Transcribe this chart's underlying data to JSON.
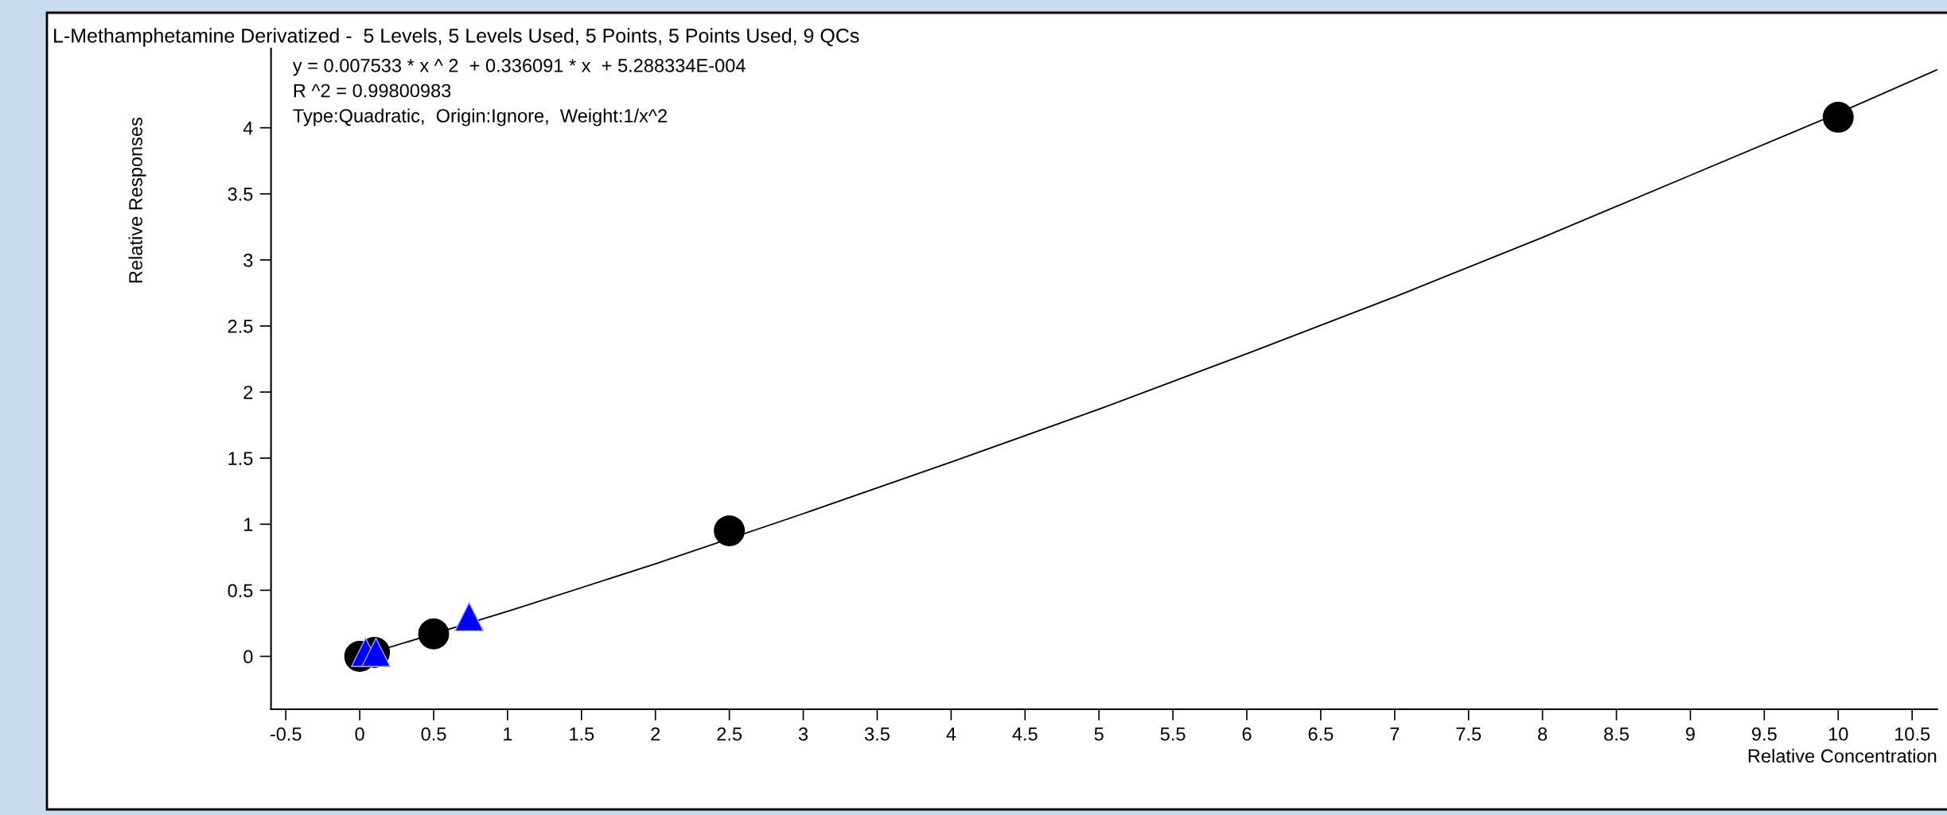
{
  "chart_data": {
    "type": "scatter",
    "title": "L-Methamphetamine Derivatized -  5 Levels, 5 Levels Used, 5 Points, 5 Points Used, 9 QCs",
    "xlabel": "Relative Concentration",
    "ylabel": "Relative Responses",
    "annotations": [
      "y = 0.007533 * x ^ 2  + 0.336091 * x  + 5.288334E-004",
      "R ^2 = 0.99800983",
      "Type:Quadratic,  Origin:Ignore,  Weight:1/x^2"
    ],
    "xlim": [
      -0.6,
      10.67
    ],
    "ylim": [
      -0.4,
      4.6
    ],
    "xticks": [
      -0.5,
      0,
      0.5,
      1,
      1.5,
      2,
      2.5,
      3,
      3.5,
      4,
      4.5,
      5,
      5.5,
      6,
      6.5,
      7,
      7.5,
      8,
      8.5,
      9,
      9.5,
      10,
      10.5
    ],
    "yticks": [
      0,
      0.5,
      1,
      1.5,
      2,
      2.5,
      3,
      3.5,
      4
    ],
    "series": [
      {
        "type": "line",
        "color": "#000000",
        "marker": "none",
        "line_style": "solid",
        "x": [
          0,
          1,
          2,
          3,
          4,
          5,
          6,
          7,
          8,
          9,
          10,
          10.67
        ],
        "values": [
          0.0,
          0.34,
          0.7,
          1.08,
          1.47,
          1.87,
          2.29,
          2.72,
          3.17,
          3.64,
          4.11,
          4.44
        ]
      },
      {
        "color": "#000000",
        "marker": "circle",
        "x": [
          0,
          0.1,
          0.5,
          2.5,
          10
        ],
        "values": [
          0.0,
          0.03,
          0.17,
          0.95,
          4.08
        ]
      },
      {
        "color": "#0000ff",
        "marker": "triangle",
        "x": [
          0.04,
          0.11,
          0.74
        ],
        "values": [
          0.03,
          0.03,
          0.3
        ]
      }
    ]
  }
}
